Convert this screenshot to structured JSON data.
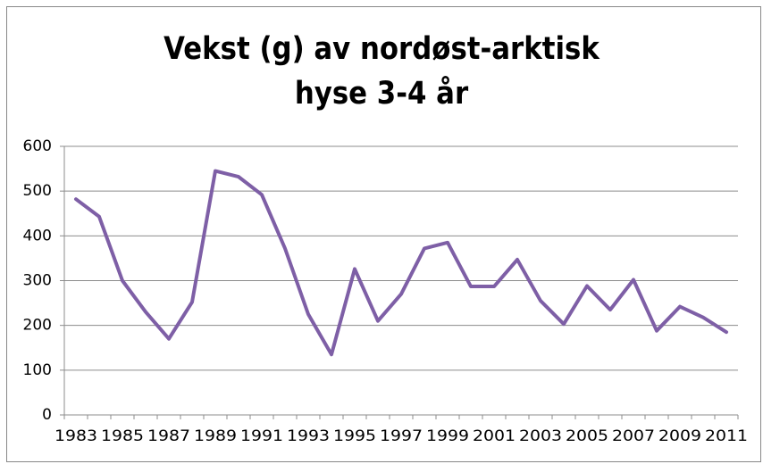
{
  "chart_data": {
    "type": "line",
    "title": "Vekst (g) av nordøst-arktisk hyse 3-4 år",
    "categories": [
      "1983",
      null,
      "1985",
      null,
      "1987",
      null,
      "1989",
      null,
      "1991",
      null,
      "1993",
      null,
      "1995",
      null,
      "1997",
      null,
      "1999",
      null,
      "2001",
      null,
      "2003",
      null,
      "2005",
      null,
      "2007",
      null,
      "2009",
      null,
      "2011"
    ],
    "values": [
      482,
      443,
      300,
      230,
      170,
      252,
      545,
      532,
      492,
      372,
      225,
      135,
      326,
      210,
      270,
      372,
      385,
      287,
      287,
      347,
      255,
      203,
      288,
      235,
      302,
      188,
      242,
      218,
      185
    ],
    "color": "#7e5fa6",
    "ylim": [
      0,
      600
    ],
    "yticks": [
      0,
      100,
      200,
      300,
      400,
      500,
      600
    ],
    "grid": true
  }
}
